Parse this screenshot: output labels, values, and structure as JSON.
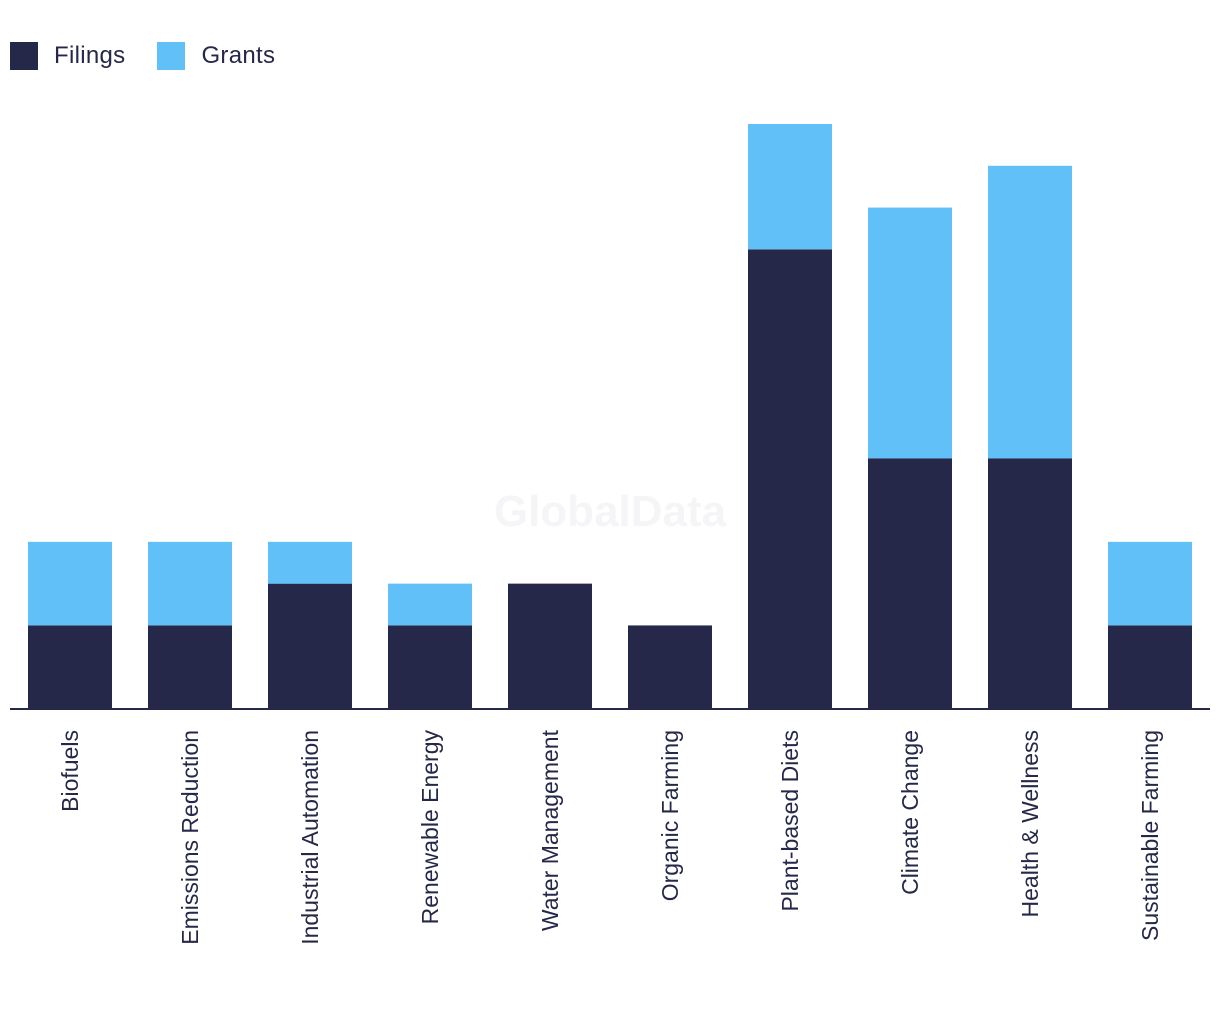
{
  "colors": {
    "filings": "#26284a",
    "grants": "#62c0f8",
    "axis": "#26284a",
    "watermark": "#f5f5f7"
  },
  "legend": {
    "filings_label": "Filings",
    "grants_label": "Grants"
  },
  "watermark_text": "GlobalData",
  "chart_data": {
    "type": "bar",
    "stacked": true,
    "categories": [
      "Biofuels",
      "Emissions Reduction",
      "Industrial Automation",
      "Renewable Energy",
      "Water Management",
      "Organic Farming",
      "Plant-based Diets",
      "Climate Change",
      "Health & Wellness",
      "Sustainable Farming"
    ],
    "series": [
      {
        "name": "Filings",
        "values": [
          2,
          2,
          3,
          2,
          3,
          2,
          11,
          6,
          6,
          2
        ]
      },
      {
        "name": "Grants",
        "values": [
          2,
          2,
          1,
          1,
          0,
          0,
          3,
          6,
          7,
          2
        ]
      }
    ],
    "ylim": [
      0,
      14
    ],
    "grid": false,
    "legend_position": "top-left",
    "xlabel": "",
    "ylabel": ""
  }
}
